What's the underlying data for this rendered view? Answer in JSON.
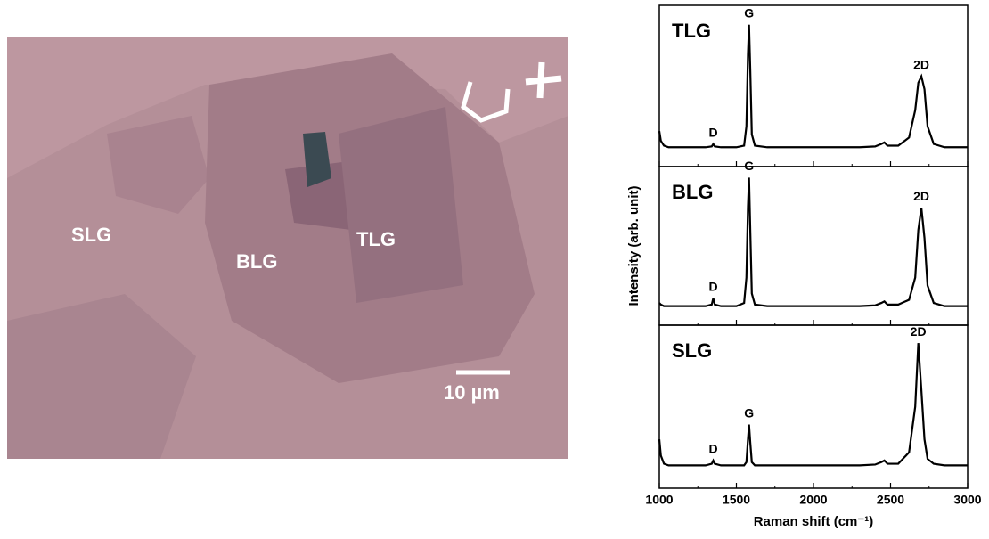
{
  "image": {
    "labels": [
      "SLG",
      "BLG",
      "TLG"
    ],
    "scale_bar": "10 µm"
  },
  "chart_data": [
    {
      "type": "line",
      "label": "TLG",
      "color": "#000000",
      "x": [
        1000,
        1010,
        1030,
        1060,
        1100,
        1200,
        1300,
        1340,
        1350,
        1360,
        1400,
        1500,
        1550,
        1565,
        1575,
        1582,
        1590,
        1600,
        1620,
        1700,
        1900,
        2100,
        2300,
        2400,
        2440,
        2460,
        2480,
        2550,
        2620,
        2660,
        2680,
        2700,
        2720,
        2740,
        2780,
        2850,
        3000
      ],
      "values": [
        22,
        16,
        13,
        12,
        12,
        12,
        12,
        12.5,
        14,
        12.5,
        12,
        12,
        13,
        25,
        70,
        88,
        60,
        20,
        13,
        12,
        12,
        12,
        12,
        12.5,
        14,
        15,
        13,
        13,
        18,
        35,
        52,
        56,
        48,
        25,
        14,
        12,
        12
      ],
      "annotations": [
        {
          "text": "D",
          "x": 1350
        },
        {
          "text": "G",
          "x": 1582
        },
        {
          "text": "2D",
          "x": 2700
        }
      ],
      "xlim": [
        1000,
        3000
      ],
      "ylim": [
        0,
        100
      ],
      "xticks": [
        1000,
        1500,
        2000,
        2500,
        3000
      ]
    },
    {
      "type": "line",
      "label": "BLG",
      "color": "#000000",
      "y_label": "Intensity (arb. unit)",
      "x": [
        1000,
        1010,
        1030,
        1060,
        1100,
        1200,
        1300,
        1340,
        1350,
        1360,
        1400,
        1500,
        1550,
        1565,
        1575,
        1582,
        1590,
        1600,
        1620,
        1700,
        1900,
        2100,
        2300,
        2400,
        2440,
        2460,
        2480,
        2550,
        2620,
        2660,
        2680,
        2700,
        2720,
        2740,
        2780,
        2850,
        3000
      ],
      "values": [
        14,
        13,
        12,
        12,
        12,
        12,
        12,
        13,
        17,
        13,
        12,
        12,
        14,
        30,
        75,
        93,
        60,
        20,
        13,
        12,
        12,
        12,
        12,
        12.5,
        14,
        15,
        13,
        13,
        16,
        30,
        60,
        74,
        55,
        25,
        14,
        12,
        12
      ],
      "annotations": [
        {
          "text": "D",
          "x": 1350
        },
        {
          "text": "G",
          "x": 1582
        },
        {
          "text": "2D",
          "x": 2700
        }
      ],
      "xlim": [
        1000,
        3000
      ],
      "ylim": [
        0,
        100
      ],
      "xticks": [
        1000,
        1500,
        2000,
        2500,
        3000
      ]
    },
    {
      "type": "line",
      "label": "SLG",
      "color": "#000000",
      "x_label": "Raman shift (cm⁻¹)",
      "x": [
        1000,
        1010,
        1030,
        1060,
        1100,
        1200,
        1300,
        1340,
        1350,
        1360,
        1400,
        1500,
        1550,
        1565,
        1575,
        1582,
        1590,
        1600,
        1620,
        1700,
        1900,
        2100,
        2300,
        2400,
        2440,
        2460,
        2480,
        2550,
        2620,
        2660,
        2680,
        2700,
        2720,
        2740,
        2780,
        2850,
        3000
      ],
      "values": [
        30,
        20,
        15,
        14,
        14,
        14,
        14,
        15,
        17,
        15,
        14,
        14,
        14,
        16,
        30,
        39,
        28,
        16,
        14,
        14,
        14,
        14,
        14,
        14.5,
        16,
        17,
        15,
        15,
        22,
        50,
        89,
        60,
        30,
        18,
        15,
        14,
        14
      ],
      "annotations": [
        {
          "text": "D",
          "x": 1350
        },
        {
          "text": "G",
          "x": 1582
        },
        {
          "text": "2D",
          "x": 2680
        }
      ],
      "xlim": [
        1000,
        3000
      ],
      "ylim": [
        0,
        100
      ],
      "xticks": [
        1000,
        1500,
        2000,
        2500,
        3000
      ]
    }
  ]
}
